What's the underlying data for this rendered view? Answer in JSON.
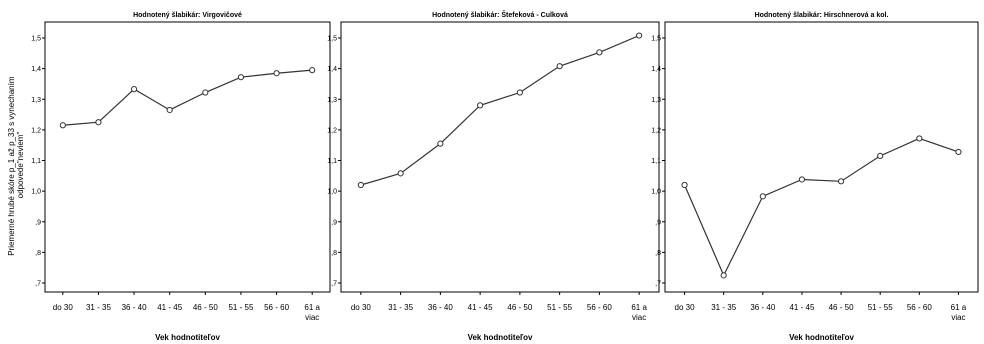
{
  "figure": {
    "ylabel_line1": "Priemerné hrubé skóre p_1 až p_33 s vynechaním",
    "ylabel_line2": "odpovede\"neviem\""
  },
  "chart_data": [
    {
      "type": "line",
      "title": "Hodnotený šlabikár: Virgovičové",
      "xlabel": "Vek hodnotiteľov",
      "ylabel": "Priemerné hrubé skóre p_1 až p_33 s vynechaním odpovede\"neviem\"",
      "categories": [
        "do 30",
        "31 - 35",
        "36 - 40",
        "41 - 45",
        "46 - 50",
        "51 - 55",
        "56 - 60",
        "61 a viac"
      ],
      "values": [
        1.215,
        1.225,
        1.333,
        1.265,
        1.322,
        1.372,
        1.385,
        1.395
      ],
      "yticks": [
        ",7",
        ",8",
        ",9",
        "1,0",
        "1,1",
        "1,2",
        "1,3",
        "1,4",
        "1,5"
      ],
      "ylim": [
        0.7,
        1.5
      ],
      "grid": false
    },
    {
      "type": "line",
      "title": "Hodnotený šlabikár: Štefeková - Culková",
      "xlabel": "Vek hodnotiteľov",
      "ylabel": "",
      "categories": [
        "do 30",
        "31 - 35",
        "36 - 40",
        "41 - 45",
        "46 - 50",
        "51 - 55",
        "56 - 60",
        "61 a viac"
      ],
      "values": [
        1.02,
        1.058,
        1.155,
        1.28,
        1.322,
        1.408,
        1.453,
        1.508
      ],
      "yticks": [
        ",7",
        ",8",
        ",9",
        "1,0",
        "1,1",
        "1,2",
        "1,3",
        "1,4",
        "1,5"
      ],
      "ylim": [
        0.7,
        1.5
      ],
      "grid": false
    },
    {
      "type": "line",
      "title": "Hodnotený šlabikár: Hirschnerová a kol.",
      "xlabel": "Vek hodnotiteľov",
      "ylabel": "",
      "categories": [
        "do 30",
        "31 - 35",
        "36 - 40",
        "41 - 45",
        "46 - 50",
        "51 - 55",
        "56 - 60",
        "61 a viac"
      ],
      "values": [
        1.02,
        0.725,
        0.983,
        1.038,
        1.032,
        1.115,
        1.172,
        1.128
      ],
      "yticks": [
        ",7",
        ",8",
        ",9",
        "1,0",
        "1,1",
        "1,2",
        "1,3",
        "1,4",
        "1,5"
      ],
      "ylim": [
        0.7,
        1.5
      ],
      "grid": false
    }
  ]
}
